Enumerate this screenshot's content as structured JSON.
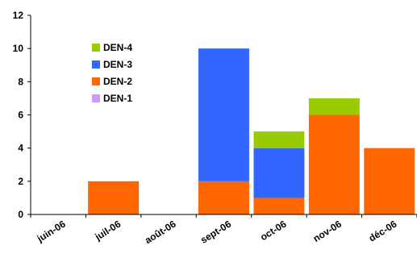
{
  "chart_data": {
    "type": "bar",
    "stacked": true,
    "categories": [
      "juin-06",
      "juil-06",
      "août-06",
      "sept-06",
      "oct-06",
      "nov-06",
      "déc-06"
    ],
    "series": [
      {
        "name": "DEN-1",
        "color": "#cc99ff",
        "values": [
          0,
          0,
          0,
          0,
          0,
          0,
          0
        ]
      },
      {
        "name": "DEN-2",
        "color": "#ff6600",
        "values": [
          0,
          2,
          0,
          2,
          1,
          6,
          4
        ]
      },
      {
        "name": "DEN-3",
        "color": "#3366ff",
        "values": [
          0,
          0,
          0,
          8,
          3,
          0,
          0
        ]
      },
      {
        "name": "DEN-4",
        "color": "#99cc00",
        "values": [
          0,
          0,
          0,
          0,
          1,
          1,
          0
        ]
      }
    ],
    "yticks": [
      "0",
      "2",
      "4",
      "6",
      "8",
      "10",
      "12"
    ],
    "ylim": [
      0,
      12
    ],
    "legend_position": "top-left",
    "grid": false,
    "title": "",
    "xlabel": "",
    "ylabel": ""
  }
}
